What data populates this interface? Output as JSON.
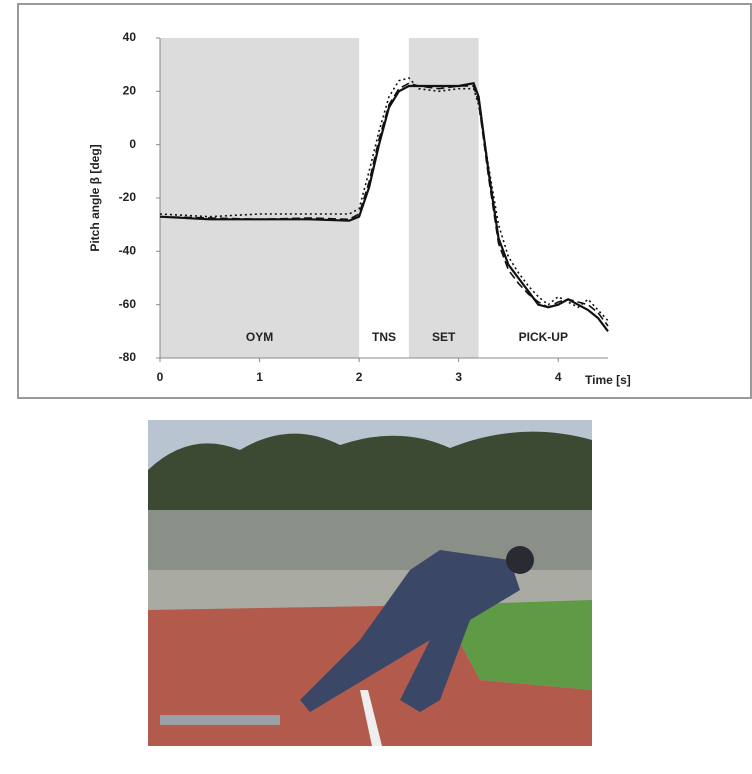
{
  "chart_data": {
    "type": "line",
    "xlabel": "Time [s]",
    "ylabel": "Pitch angle β [deg]",
    "xlim": [
      0,
      4.5
    ],
    "ylim": [
      -80,
      40
    ],
    "xticks": [
      0,
      1,
      2,
      3,
      4
    ],
    "yticks": [
      -80,
      -60,
      -40,
      -20,
      0,
      20,
      40
    ],
    "phases": [
      {
        "label": "OYM",
        "start": 0,
        "end": 2,
        "shaded": true
      },
      {
        "label": "TNS",
        "start": 2,
        "end": 2.5,
        "shaded": false
      },
      {
        "label": "SET",
        "start": 2.5,
        "end": 3.2,
        "shaded": true
      },
      {
        "label": "PICK-UP",
        "start": 3.2,
        "end": 4.5,
        "shaded": false
      }
    ],
    "x": [
      0,
      0.5,
      1,
      1.5,
      1.9,
      2,
      2.1,
      2.2,
      2.3,
      2.4,
      2.5,
      2.6,
      2.8,
      3,
      3.15,
      3.2,
      3.3,
      3.4,
      3.5,
      3.6,
      3.7,
      3.8,
      3.9,
      4,
      4.1,
      4.2,
      4.3,
      4.4,
      4.5
    ],
    "series": [
      {
        "color": "#111111",
        "dash": "solid",
        "values": [
          -27,
          -28,
          -28,
          -28,
          -28.5,
          -27,
          -16,
          0,
          14,
          20,
          22,
          22,
          22,
          22,
          23,
          18,
          -10,
          -35,
          -45,
          -50,
          -55,
          -60,
          -61,
          -60,
          -58,
          -60,
          -62,
          -65,
          -70
        ]
      },
      {
        "color": "#111111",
        "dash": "dashed",
        "values": [
          -27,
          -27.5,
          -28,
          -27.5,
          -28,
          -26,
          -14,
          2,
          15,
          21,
          23,
          22,
          21,
          22,
          22,
          16,
          -12,
          -37,
          -47,
          -52,
          -56,
          -59,
          -61,
          -59,
          -58,
          -59,
          -60,
          -63,
          -68
        ]
      },
      {
        "color": "#111111",
        "dash": "dotted",
        "values": [
          -26,
          -27,
          -26,
          -26,
          -26,
          -24,
          -10,
          5,
          18,
          24,
          25,
          21,
          20,
          21,
          21,
          15,
          -8,
          -30,
          -42,
          -48,
          -53,
          -57,
          -60,
          -57,
          -59,
          -61,
          -58,
          -62,
          -66
        ]
      }
    ],
    "shade_color": "#dcdcdc"
  }
}
